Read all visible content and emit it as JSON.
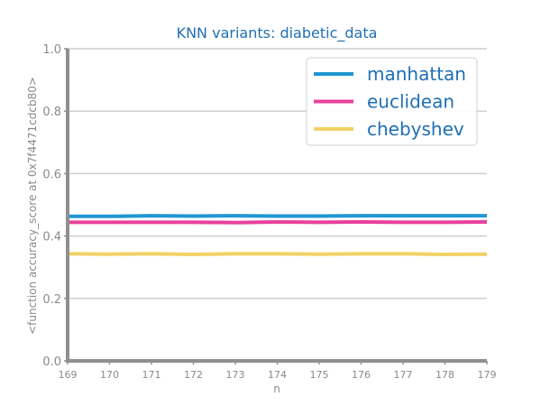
{
  "chart_data": {
    "type": "line",
    "title": "KNN variants: diabetic_data",
    "xlabel": "n",
    "ylabel": "<function accuracy_score at 0x7f4471cdcb80>",
    "x": [
      169,
      170,
      171,
      172,
      173,
      174,
      175,
      176,
      177,
      178,
      179
    ],
    "xlim": [
      169,
      179
    ],
    "ylim": [
      0.0,
      1.0
    ],
    "yticks": [
      "0.0",
      "0.2",
      "0.4",
      "0.6",
      "0.8",
      "1.0"
    ],
    "xticks": [
      "169",
      "170",
      "171",
      "172",
      "173",
      "174",
      "175",
      "176",
      "177",
      "178",
      "179"
    ],
    "grid": "horizontal",
    "legend_position": "top-right",
    "series": [
      {
        "name": "manhattan",
        "color": "#2196d3",
        "values": [
          0.463,
          0.463,
          0.465,
          0.464,
          0.465,
          0.464,
          0.464,
          0.465,
          0.465,
          0.465,
          0.465
        ]
      },
      {
        "name": "euclidean",
        "color": "#e8419b",
        "values": [
          0.444,
          0.444,
          0.444,
          0.444,
          0.443,
          0.445,
          0.444,
          0.445,
          0.444,
          0.444,
          0.445
        ]
      },
      {
        "name": "chebyshev",
        "color": "#f1d265",
        "values": [
          0.343,
          0.342,
          0.343,
          0.341,
          0.343,
          0.343,
          0.342,
          0.343,
          0.343,
          0.341,
          0.342
        ]
      }
    ]
  }
}
